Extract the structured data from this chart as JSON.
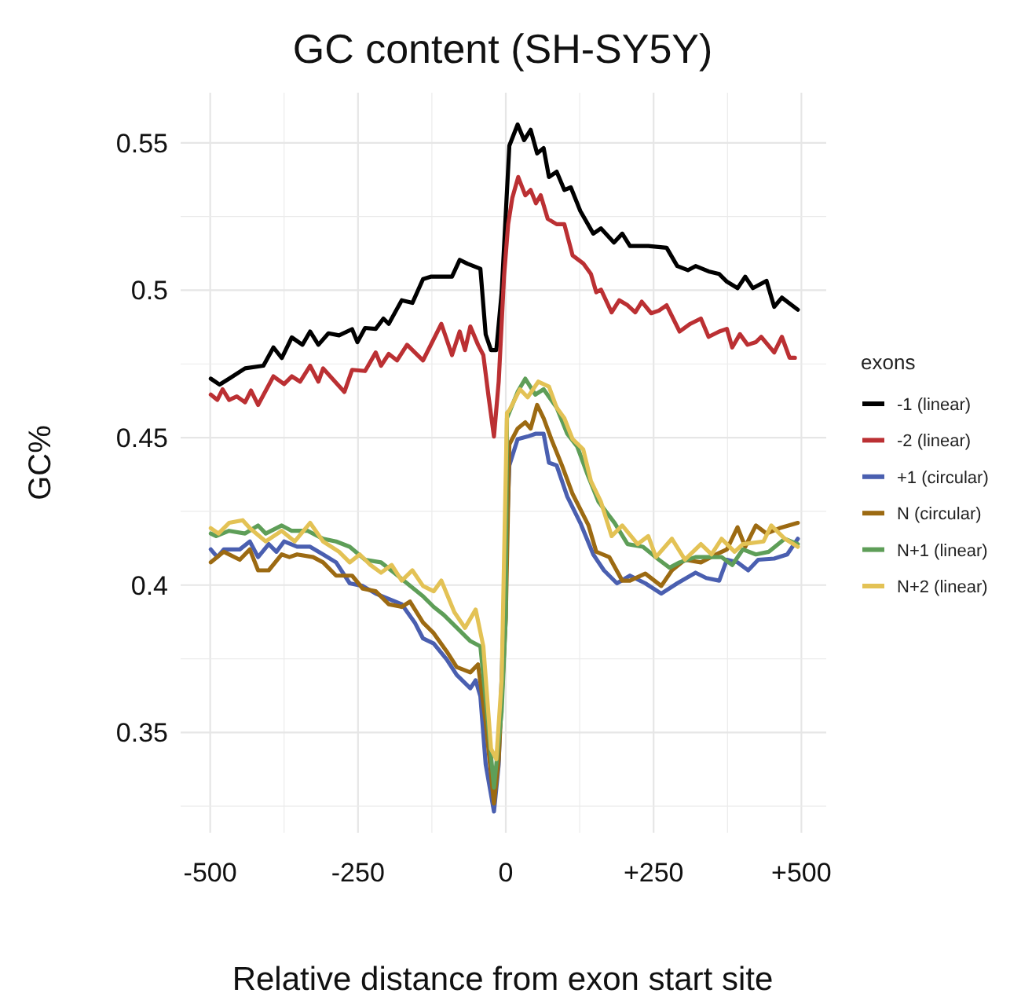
{
  "chart_data": {
    "type": "line",
    "title": "GC content (SH-SY5Y)",
    "xlabel": "Relative distance from exon start site",
    "ylabel": "GC%",
    "legend_title": "exons",
    "legend": "right",
    "grid": true,
    "line_style": "solid",
    "marker": "none",
    "xlim": [
      -550,
      542
    ],
    "ylim": [
      0.316,
      0.567
    ],
    "xticks": [
      -500,
      -250,
      0,
      {
        "value": 250,
        "label": "+250"
      },
      {
        "value": 500,
        "label": "+500"
      }
    ],
    "yticks": [
      0.35,
      0.4,
      0.45,
      0.5,
      0.55
    ],
    "series": [
      {
        "name": "-1 (linear)",
        "color": "#000000",
        "x": [
          -499,
          -484,
          -468,
          -441,
          -410,
          -393,
          -379,
          -362,
          -344,
          -331,
          -317,
          -300,
          -282,
          -260,
          -251,
          -238,
          -220,
          -207,
          -198,
          -176,
          -158,
          -140,
          -127,
          -109,
          -91,
          -78,
          -65,
          -43,
          -34,
          -25,
          -16,
          -7,
          6,
          20,
          31,
          42,
          53,
          64,
          73,
          86,
          99,
          110,
          126,
          148,
          161,
          183,
          197,
          210,
          241,
          272,
          290,
          308,
          321,
          343,
          361,
          374,
          392,
          405,
          418,
          441,
          454,
          467,
          494
        ],
        "values": [
          0.47,
          0.468,
          0.47,
          0.4735,
          0.4744,
          0.4806,
          0.477,
          0.484,
          0.4815,
          0.486,
          0.4815,
          0.4854,
          0.4847,
          0.4868,
          0.4824,
          0.4872,
          0.4869,
          0.4904,
          0.4886,
          0.4966,
          0.4957,
          0.5038,
          0.5046,
          0.5046,
          0.5046,
          0.5103,
          0.509,
          0.5073,
          0.485,
          0.4797,
          0.4797,
          0.4993,
          0.549,
          0.5562,
          0.5509,
          0.5544,
          0.5464,
          0.5482,
          0.5384,
          0.5402,
          0.534,
          0.5349,
          0.5269,
          0.5192,
          0.521,
          0.5162,
          0.5192,
          0.515,
          0.515,
          0.5144,
          0.5082,
          0.5068,
          0.5082,
          0.5064,
          0.5055,
          0.5029,
          0.5007,
          0.5046,
          0.5007,
          0.5032,
          0.4944,
          0.4975,
          0.4934
        ]
      },
      {
        "name": "-2 (linear)",
        "color": "#bb3033",
        "x": [
          -499,
          -488,
          -479,
          -468,
          -455,
          -441,
          -431,
          -419,
          -393,
          -375,
          -362,
          -348,
          -331,
          -317,
          -309,
          -273,
          -260,
          -238,
          -220,
          -211,
          -198,
          -184,
          -167,
          -140,
          -109,
          -91,
          -78,
          -69,
          -60,
          -47,
          -38,
          -29,
          -20,
          -12,
          -3,
          4,
          11,
          21,
          33,
          42,
          51,
          59,
          71,
          86,
          99,
          113,
          131,
          144,
          153,
          161,
          179,
          192,
          206,
          219,
          230,
          246,
          259,
          272,
          294,
          312,
          330,
          343,
          361,
          374,
          383,
          396,
          409,
          423,
          432,
          454,
          467,
          480,
          489
        ],
        "values": [
          0.4646,
          0.4628,
          0.4664,
          0.4628,
          0.464,
          0.462,
          0.466,
          0.4611,
          0.4708,
          0.4682,
          0.4708,
          0.469,
          0.4744,
          0.469,
          0.4735,
          0.4655,
          0.473,
          0.4726,
          0.4789,
          0.4744,
          0.4784,
          0.4762,
          0.4815,
          0.4762,
          0.4886,
          0.478,
          0.486,
          0.4797,
          0.4877,
          0.4815,
          0.478,
          0.4637,
          0.4504,
          0.469,
          0.5046,
          0.5224,
          0.5313,
          0.5384,
          0.5322,
          0.534,
          0.5295,
          0.5322,
          0.5242,
          0.5224,
          0.5224,
          0.5118,
          0.5091,
          0.5055,
          0.4993,
          0.5002,
          0.4925,
          0.4966,
          0.4949,
          0.4925,
          0.4961,
          0.4922,
          0.4931,
          0.4949,
          0.486,
          0.4886,
          0.4904,
          0.4842,
          0.486,
          0.4869,
          0.4806,
          0.4851,
          0.4815,
          0.4824,
          0.4842,
          0.4789,
          0.4842,
          0.4771,
          0.4771
        ]
      },
      {
        "name": "+1 (circular)",
        "color": "#4a5fb0",
        "x": [
          -499,
          -488,
          -477,
          -450,
          -433,
          -419,
          -401,
          -388,
          -375,
          -353,
          -331,
          -309,
          -287,
          -264,
          -242,
          -220,
          -198,
          -176,
          -154,
          -140,
          -122,
          -100,
          -83,
          -60,
          -51,
          -43,
          -34,
          -20,
          -12,
          -3,
          6,
          20,
          37,
          50,
          64,
          73,
          86,
          104,
          126,
          148,
          166,
          188,
          210,
          236,
          263,
          290,
          321,
          339,
          361,
          374,
          392,
          410,
          427,
          454,
          476,
          494
        ],
        "values": [
          0.4121,
          0.4095,
          0.4121,
          0.4121,
          0.4148,
          0.4095,
          0.4139,
          0.4113,
          0.4148,
          0.413,
          0.413,
          0.4104,
          0.4077,
          0.4006,
          0.3997,
          0.3971,
          0.3953,
          0.3935,
          0.3873,
          0.3819,
          0.3802,
          0.3748,
          0.3695,
          0.365,
          0.3677,
          0.3623,
          0.3392,
          0.3232,
          0.3392,
          0.3926,
          0.4406,
          0.4495,
          0.4504,
          0.4513,
          0.4513,
          0.4415,
          0.4406,
          0.43,
          0.4211,
          0.4104,
          0.405,
          0.4006,
          0.4032,
          0.4006,
          0.3971,
          0.4006,
          0.4042,
          0.4024,
          0.4015,
          0.4086,
          0.4077,
          0.405,
          0.4086,
          0.409,
          0.4104,
          0.4157
        ]
      },
      {
        "name": "N (circular)",
        "color": "#9c6a12",
        "x": [
          -499,
          -477,
          -450,
          -433,
          -419,
          -401,
          -379,
          -366,
          -353,
          -326,
          -309,
          -287,
          -260,
          -242,
          -220,
          -198,
          -176,
          -162,
          -140,
          -122,
          -100,
          -83,
          -60,
          -47,
          -34,
          -20,
          -12,
          0,
          6,
          20,
          33,
          42,
          53,
          64,
          77,
          95,
          113,
          140,
          153,
          175,
          197,
          210,
          236,
          263,
          281,
          303,
          330,
          356,
          374,
          392,
          405,
          423,
          441,
          463,
          494
        ],
        "values": [
          0.4077,
          0.4113,
          0.4086,
          0.4121,
          0.405,
          0.405,
          0.4104,
          0.4095,
          0.4104,
          0.4095,
          0.4077,
          0.4032,
          0.4032,
          0.3988,
          0.3979,
          0.3935,
          0.3926,
          0.3944,
          0.3873,
          0.3837,
          0.3775,
          0.3722,
          0.3704,
          0.3731,
          0.3535,
          0.3259,
          0.3409,
          0.389,
          0.4477,
          0.4531,
          0.4552,
          0.4531,
          0.4611,
          0.4566,
          0.4495,
          0.4406,
          0.4309,
          0.4202,
          0.4113,
          0.4095,
          0.4015,
          0.4015,
          0.4039,
          0.3997,
          0.405,
          0.4086,
          0.4077,
          0.4104,
          0.4121,
          0.4196,
          0.413,
          0.4202,
          0.4175,
          0.4193,
          0.4211
        ]
      },
      {
        "name": "N+1 (linear)",
        "color": "#5e9e58",
        "x": [
          -499,
          -490,
          -468,
          -441,
          -419,
          -406,
          -379,
          -362,
          -335,
          -309,
          -287,
          -264,
          -238,
          -211,
          -189,
          -167,
          -140,
          -122,
          -105,
          -78,
          -60,
          -43,
          -32,
          -20,
          -7,
          0,
          2,
          20,
          33,
          50,
          64,
          86,
          104,
          121,
          139,
          157,
          184,
          206,
          232,
          259,
          277,
          294,
          321,
          343,
          365,
          383,
          401,
          423,
          445,
          472,
          494
        ],
        "values": [
          0.4175,
          0.4166,
          0.4184,
          0.4175,
          0.4202,
          0.4175,
          0.4202,
          0.4184,
          0.4184,
          0.4157,
          0.4148,
          0.413,
          0.4086,
          0.4077,
          0.4042,
          0.4006,
          0.3962,
          0.3926,
          0.3899,
          0.3846,
          0.381,
          0.3792,
          0.3571,
          0.3313,
          0.3571,
          0.389,
          0.4566,
          0.4655,
          0.47,
          0.4646,
          0.4664,
          0.4602,
          0.4513,
          0.4469,
          0.4371,
          0.4282,
          0.4211,
          0.4139,
          0.413,
          0.4086,
          0.4059,
          0.4077,
          0.4095,
          0.4095,
          0.4095,
          0.4068,
          0.4121,
          0.4104,
          0.4113,
          0.4157,
          0.4139
        ]
      },
      {
        "name": "N+2 (linear)",
        "color": "#e3c255",
        "x": [
          -499,
          -486,
          -468,
          -445,
          -433,
          -406,
          -379,
          -357,
          -331,
          -309,
          -282,
          -264,
          -247,
          -229,
          -211,
          -193,
          -176,
          -158,
          -140,
          -122,
          -109,
          -87,
          -69,
          -51,
          -38,
          -25,
          -16,
          -7,
          2,
          6,
          24,
          37,
          55,
          73,
          86,
          99,
          113,
          131,
          144,
          161,
          179,
          197,
          223,
          241,
          254,
          281,
          303,
          330,
          348,
          365,
          387,
          401,
          436,
          449,
          472,
          494
        ],
        "values": [
          0.4193,
          0.4175,
          0.4211,
          0.422,
          0.4193,
          0.4148,
          0.4184,
          0.4148,
          0.4211,
          0.4148,
          0.4113,
          0.4077,
          0.4104,
          0.4068,
          0.4042,
          0.4068,
          0.4015,
          0.405,
          0.3997,
          0.3979,
          0.4015,
          0.3908,
          0.3855,
          0.3917,
          0.3792,
          0.3445,
          0.3409,
          0.3677,
          0.4584,
          0.4593,
          0.4664,
          0.4637,
          0.469,
          0.4673,
          0.4602,
          0.4566,
          0.4495,
          0.446,
          0.4353,
          0.4282,
          0.4166,
          0.4202,
          0.4139,
          0.4166,
          0.4095,
          0.4157,
          0.4086,
          0.4139,
          0.4104,
          0.4157,
          0.4113,
          0.4139,
          0.4148,
          0.4202,
          0.4157,
          0.413
        ]
      }
    ]
  }
}
